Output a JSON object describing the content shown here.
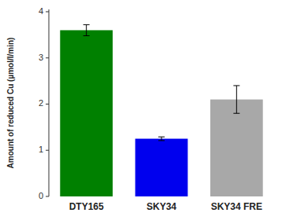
{
  "chart_data": {
    "type": "bar",
    "categories": [
      "DTY165",
      "SKY34",
      "SKY34 FRE"
    ],
    "values": [
      3.6,
      1.25,
      2.1
    ],
    "errors": [
      0.12,
      0.04,
      0.3
    ],
    "colors": [
      "#008000",
      "#0000EE",
      "#A8A8A8"
    ],
    "ylabel": "Amount of reduced Cu (µmol/l/min)",
    "ylim": [
      0,
      4.05
    ],
    "yticks": [
      0,
      1,
      2,
      3,
      4
    ],
    "grid": false
  }
}
